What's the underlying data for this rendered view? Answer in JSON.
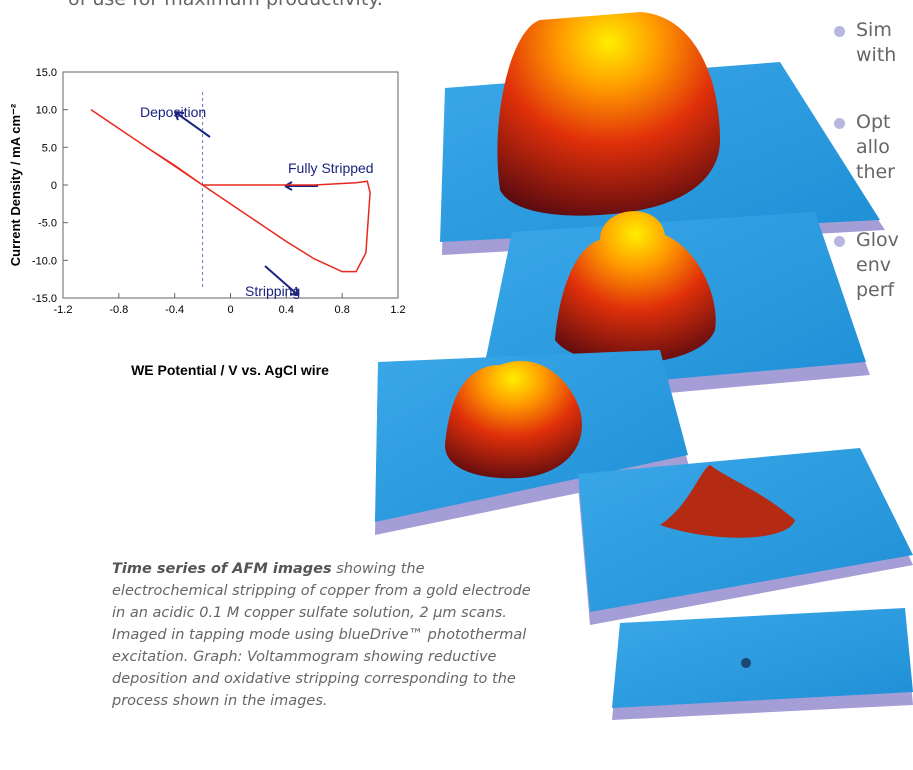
{
  "header_text": "of use for maximum productivity.",
  "bullets": [
    [
      "Sim",
      "with"
    ],
    [
      "Opt",
      "allo",
      "ther"
    ],
    [
      "Glov",
      "env",
      "perf"
    ]
  ],
  "caption": {
    "lead": "Time series of AFM images",
    "lines": [
      " showing the",
      "electrochemical stripping of copper from a gold electrode",
      "in an acidic 0.1 M copper sulfate solution, 2 µm scans.",
      "Imaged in tapping mode using blueDrive™ photothermal",
      "excitation. Graph: Voltammogram showing reductive",
      "deposition and oxidative stripping corresponding to the",
      "process shown in the images."
    ]
  },
  "chart_data": {
    "type": "line",
    "x_label": "WE Potential / V vs. AgCl wire",
    "y_label": "Current Density / mA cm⁻²",
    "x": [
      -1.0,
      -0.8,
      -0.6,
      -0.4,
      -0.2,
      0,
      0.2,
      0.4,
      0.6,
      0.8,
      0.9,
      0.97,
      1.0,
      0.98,
      0.9,
      0.6,
      0.2,
      -0.2,
      -0.4,
      -0.6,
      -0.8,
      -1.0
    ],
    "series": [
      {
        "color": "#e8281e",
        "values": [
          10,
          7.5,
          5,
          2.6,
          0,
          -2.5,
          -5,
          -7.5,
          -9.8,
          -11.5,
          -11.5,
          -9,
          -1,
          0.5,
          0.3,
          0,
          0,
          0,
          2.5,
          5,
          7.5,
          10
        ]
      }
    ],
    "xlim": [
      -1.2,
      1.2
    ],
    "ylim": [
      -15,
      15
    ],
    "xticks": [
      -1.2,
      -0.8,
      -0.4,
      0,
      0.4,
      0.8,
      1.2
    ],
    "yticks": [
      {
        "value": 15,
        "label": "15.0"
      },
      {
        "value": 10,
        "label": "10.0"
      },
      {
        "value": 5,
        "label": "5.0"
      },
      0,
      {
        "value": -5,
        "label": "-5.0"
      },
      {
        "value": -10,
        "label": "-10.0"
      },
      {
        "value": -15,
        "label": "-15.0"
      }
    ],
    "reference_x": -0.2,
    "annotations": [
      "Deposition",
      "Fully Stripped",
      "Stripping"
    ]
  }
}
